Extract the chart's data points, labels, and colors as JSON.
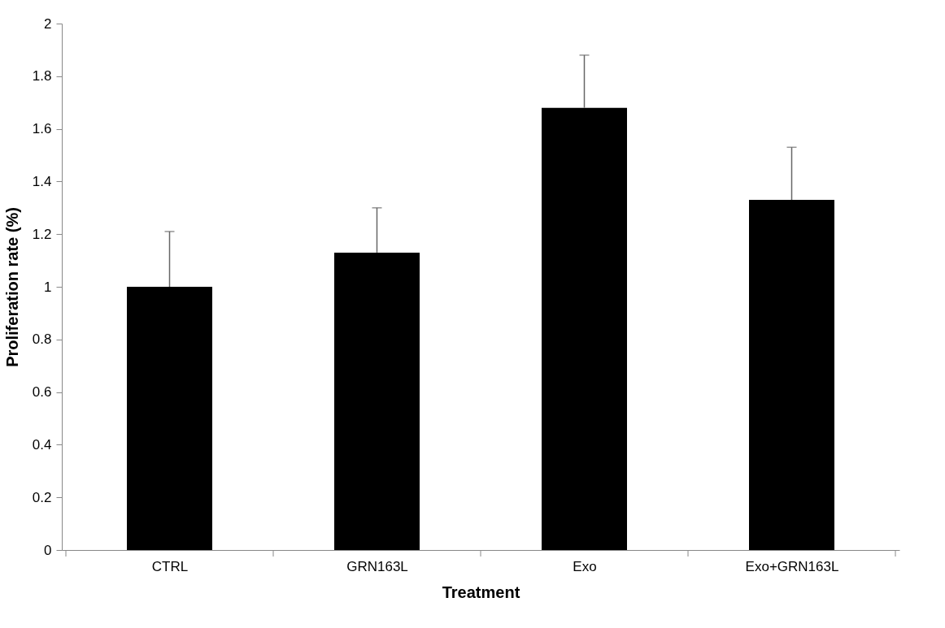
{
  "chart_data": {
    "type": "bar",
    "xlabel": "Treatment",
    "ylabel": "Proliferation rate (%)",
    "categories": [
      "CTRL",
      "GRN163L",
      "Exo",
      "Exo+GRN163L"
    ],
    "values": [
      1.0,
      1.13,
      1.68,
      1.33
    ],
    "color": "#000000",
    "errors": [
      [
        1.0,
        1.21
      ],
      [
        1.13,
        1.3
      ],
      [
        1.68,
        1.88
      ],
      [
        1.33,
        1.53
      ]
    ],
    "ylim": [
      0,
      2
    ],
    "yticks": [
      0,
      0.2,
      0.4,
      0.6,
      0.8,
      1,
      1.2,
      1.4,
      1.6,
      1.8,
      2
    ],
    "grid": false
  }
}
